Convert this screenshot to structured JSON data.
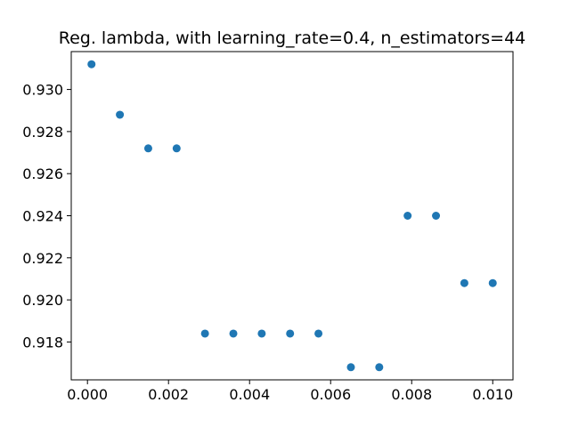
{
  "chart_data": {
    "type": "scatter",
    "title": "Reg. lambda, with learning_rate=0.4, n_estimators=44",
    "xlabel": "",
    "ylabel": "",
    "xlim": [
      -0.0004,
      0.0105
    ],
    "ylim": [
      0.9162,
      0.9318
    ],
    "grid": false,
    "marker_color": "#1f77b4",
    "xticks": [
      0.0,
      0.002,
      0.004,
      0.006,
      0.008,
      0.01
    ],
    "xtick_labels": [
      "0.000",
      "0.002",
      "0.004",
      "0.006",
      "0.008",
      "0.010"
    ],
    "yticks": [
      0.918,
      0.92,
      0.922,
      0.924,
      0.926,
      0.928,
      0.93
    ],
    "ytick_labels": [
      "0.918",
      "0.920",
      "0.922",
      "0.924",
      "0.926",
      "0.928",
      "0.930"
    ],
    "points": [
      {
        "x": 0.0001,
        "y": 0.9312
      },
      {
        "x": 0.0008,
        "y": 0.9288
      },
      {
        "x": 0.0015,
        "y": 0.9272
      },
      {
        "x": 0.0022,
        "y": 0.9272
      },
      {
        "x": 0.0029,
        "y": 0.9184
      },
      {
        "x": 0.0036,
        "y": 0.9184
      },
      {
        "x": 0.0043,
        "y": 0.9184
      },
      {
        "x": 0.005,
        "y": 0.9184
      },
      {
        "x": 0.0057,
        "y": 0.9184
      },
      {
        "x": 0.0065,
        "y": 0.9168
      },
      {
        "x": 0.0072,
        "y": 0.9168
      },
      {
        "x": 0.0079,
        "y": 0.924
      },
      {
        "x": 0.0086,
        "y": 0.924
      },
      {
        "x": 0.0093,
        "y": 0.9208
      },
      {
        "x": 0.01,
        "y": 0.9208
      }
    ]
  }
}
